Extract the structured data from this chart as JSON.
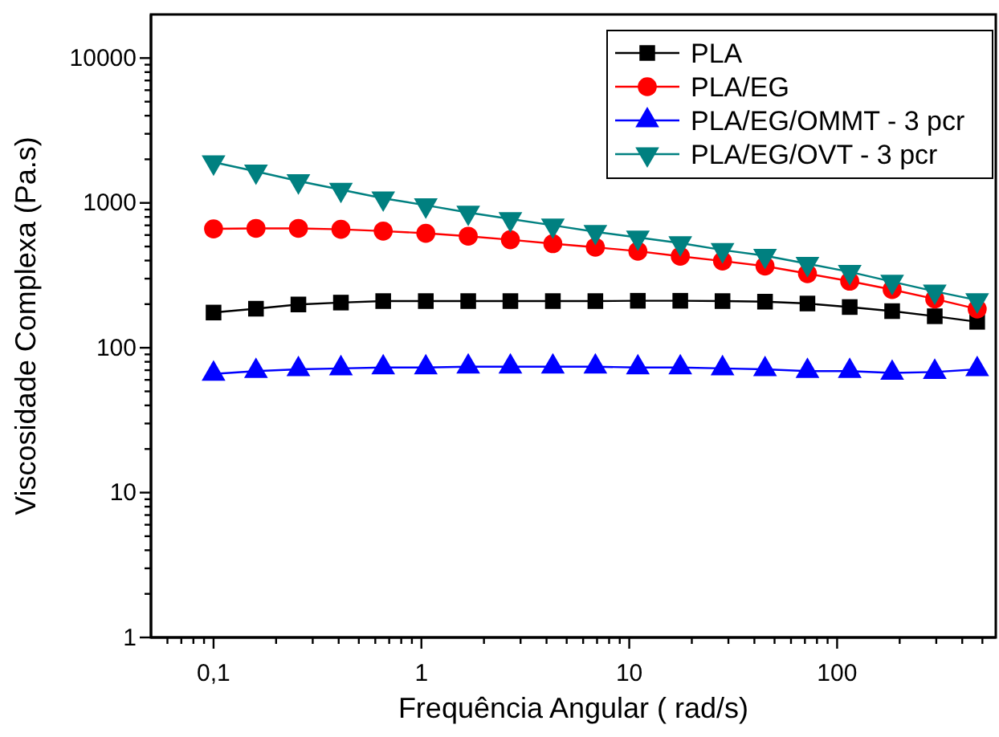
{
  "chart_data": {
    "type": "line",
    "xlabel": "Frequência Angular ( rad/s)",
    "ylabel": "Viscosidade Complexa (Pa.s)",
    "log": "xy",
    "legend": "top right",
    "grid": false,
    "x": [
      0.1,
      0.16,
      0.256,
      0.41,
      0.655,
      1.05,
      1.68,
      2.68,
      4.29,
      6.87,
      11,
      17.6,
      28.1,
      45,
      72,
      115,
      184,
      295,
      472
    ],
    "xlim": [
      0.05,
      580
    ],
    "ylim": [
      1,
      20000
    ],
    "xticks": [
      {
        "value": 0.06,
        "label": null
      },
      {
        "value": 0.07,
        "label": null
      },
      {
        "value": 0.08,
        "label": null
      },
      {
        "value": 0.09,
        "label": null
      },
      {
        "value": 0.1,
        "label": "0,1"
      },
      {
        "value": 0.2,
        "label": null
      },
      {
        "value": 0.3,
        "label": null
      },
      {
        "value": 0.4,
        "label": null
      },
      {
        "value": 0.5,
        "label": null
      },
      {
        "value": 0.6,
        "label": null
      },
      {
        "value": 0.7,
        "label": null
      },
      {
        "value": 0.8,
        "label": null
      },
      {
        "value": 0.9,
        "label": null
      },
      1,
      {
        "value": 2,
        "label": null
      },
      {
        "value": 3,
        "label": null
      },
      {
        "value": 4,
        "label": null
      },
      {
        "value": 5,
        "label": null
      },
      {
        "value": 6,
        "label": null
      },
      {
        "value": 7,
        "label": null
      },
      {
        "value": 8,
        "label": null
      },
      {
        "value": 9,
        "label": null
      },
      10,
      {
        "value": 20,
        "label": null
      },
      {
        "value": 30,
        "label": null
      },
      {
        "value": 40,
        "label": null
      },
      {
        "value": 50,
        "label": null
      },
      {
        "value": 60,
        "label": null
      },
      {
        "value": 70,
        "label": null
      },
      {
        "value": 80,
        "label": null
      },
      {
        "value": 90,
        "label": null
      },
      100,
      {
        "value": 200,
        "label": null
      },
      {
        "value": 300,
        "label": null
      },
      {
        "value": 400,
        "label": null
      },
      {
        "value": 500,
        "label": null
      }
    ],
    "yticks": [
      1,
      {
        "value": 2,
        "label": null
      },
      {
        "value": 3,
        "label": null
      },
      {
        "value": 4,
        "label": null
      },
      {
        "value": 5,
        "label": null
      },
      {
        "value": 6,
        "label": null
      },
      {
        "value": 7,
        "label": null
      },
      {
        "value": 8,
        "label": null
      },
      {
        "value": 9,
        "label": null
      },
      10,
      {
        "value": 20,
        "label": null
      },
      {
        "value": 30,
        "label": null
      },
      {
        "value": 40,
        "label": null
      },
      {
        "value": 50,
        "label": null
      },
      {
        "value": 60,
        "label": null
      },
      {
        "value": 70,
        "label": null
      },
      {
        "value": 80,
        "label": null
      },
      {
        "value": 90,
        "label": null
      },
      100,
      {
        "value": 200,
        "label": null
      },
      {
        "value": 300,
        "label": null
      },
      {
        "value": 400,
        "label": null
      },
      {
        "value": 500,
        "label": null
      },
      {
        "value": 600,
        "label": null
      },
      {
        "value": 700,
        "label": null
      },
      {
        "value": 800,
        "label": null
      },
      {
        "value": 900,
        "label": null
      },
      1000,
      {
        "value": 2000,
        "label": null
      },
      {
        "value": 3000,
        "label": null
      },
      {
        "value": 4000,
        "label": null
      },
      {
        "value": 5000,
        "label": null
      },
      {
        "value": 6000,
        "label": null
      },
      {
        "value": 7000,
        "label": null
      },
      {
        "value": 8000,
        "label": null
      },
      {
        "value": 9000,
        "label": null
      },
      10000
    ],
    "series": [
      {
        "name": "PLA",
        "color": "#000000",
        "marker": "square",
        "values": [
          175,
          186,
          199,
          205,
          210,
          210,
          210,
          210,
          210,
          210,
          211,
          211,
          210,
          208,
          202,
          191,
          179,
          165,
          151
        ]
      },
      {
        "name": "PLA/EG",
        "color": "#ff0000",
        "marker": "circle",
        "values": [
          662,
          667,
          667,
          657,
          639,
          617,
          589,
          557,
          523,
          494,
          464,
          428,
          397,
          366,
          325,
          288,
          252,
          217,
          185
        ]
      },
      {
        "name": "PLA/EG/OMMT - 3 pcr",
        "color": "#0000ff",
        "marker": "triangle",
        "values": [
          66,
          69,
          71,
          72,
          73,
          73,
          74,
          74,
          74,
          74,
          73,
          73,
          72,
          71,
          69,
          69,
          67,
          68,
          71
        ]
      },
      {
        "name": "PLA/EG/OVT - 3 pcr",
        "color": "#008080",
        "marker": "triangle-down",
        "values": [
          1910,
          1650,
          1415,
          1234,
          1076,
          964,
          858,
          774,
          700,
          632,
          578,
          528,
          473,
          432,
          380,
          334,
          286,
          245,
          213
        ]
      }
    ]
  }
}
